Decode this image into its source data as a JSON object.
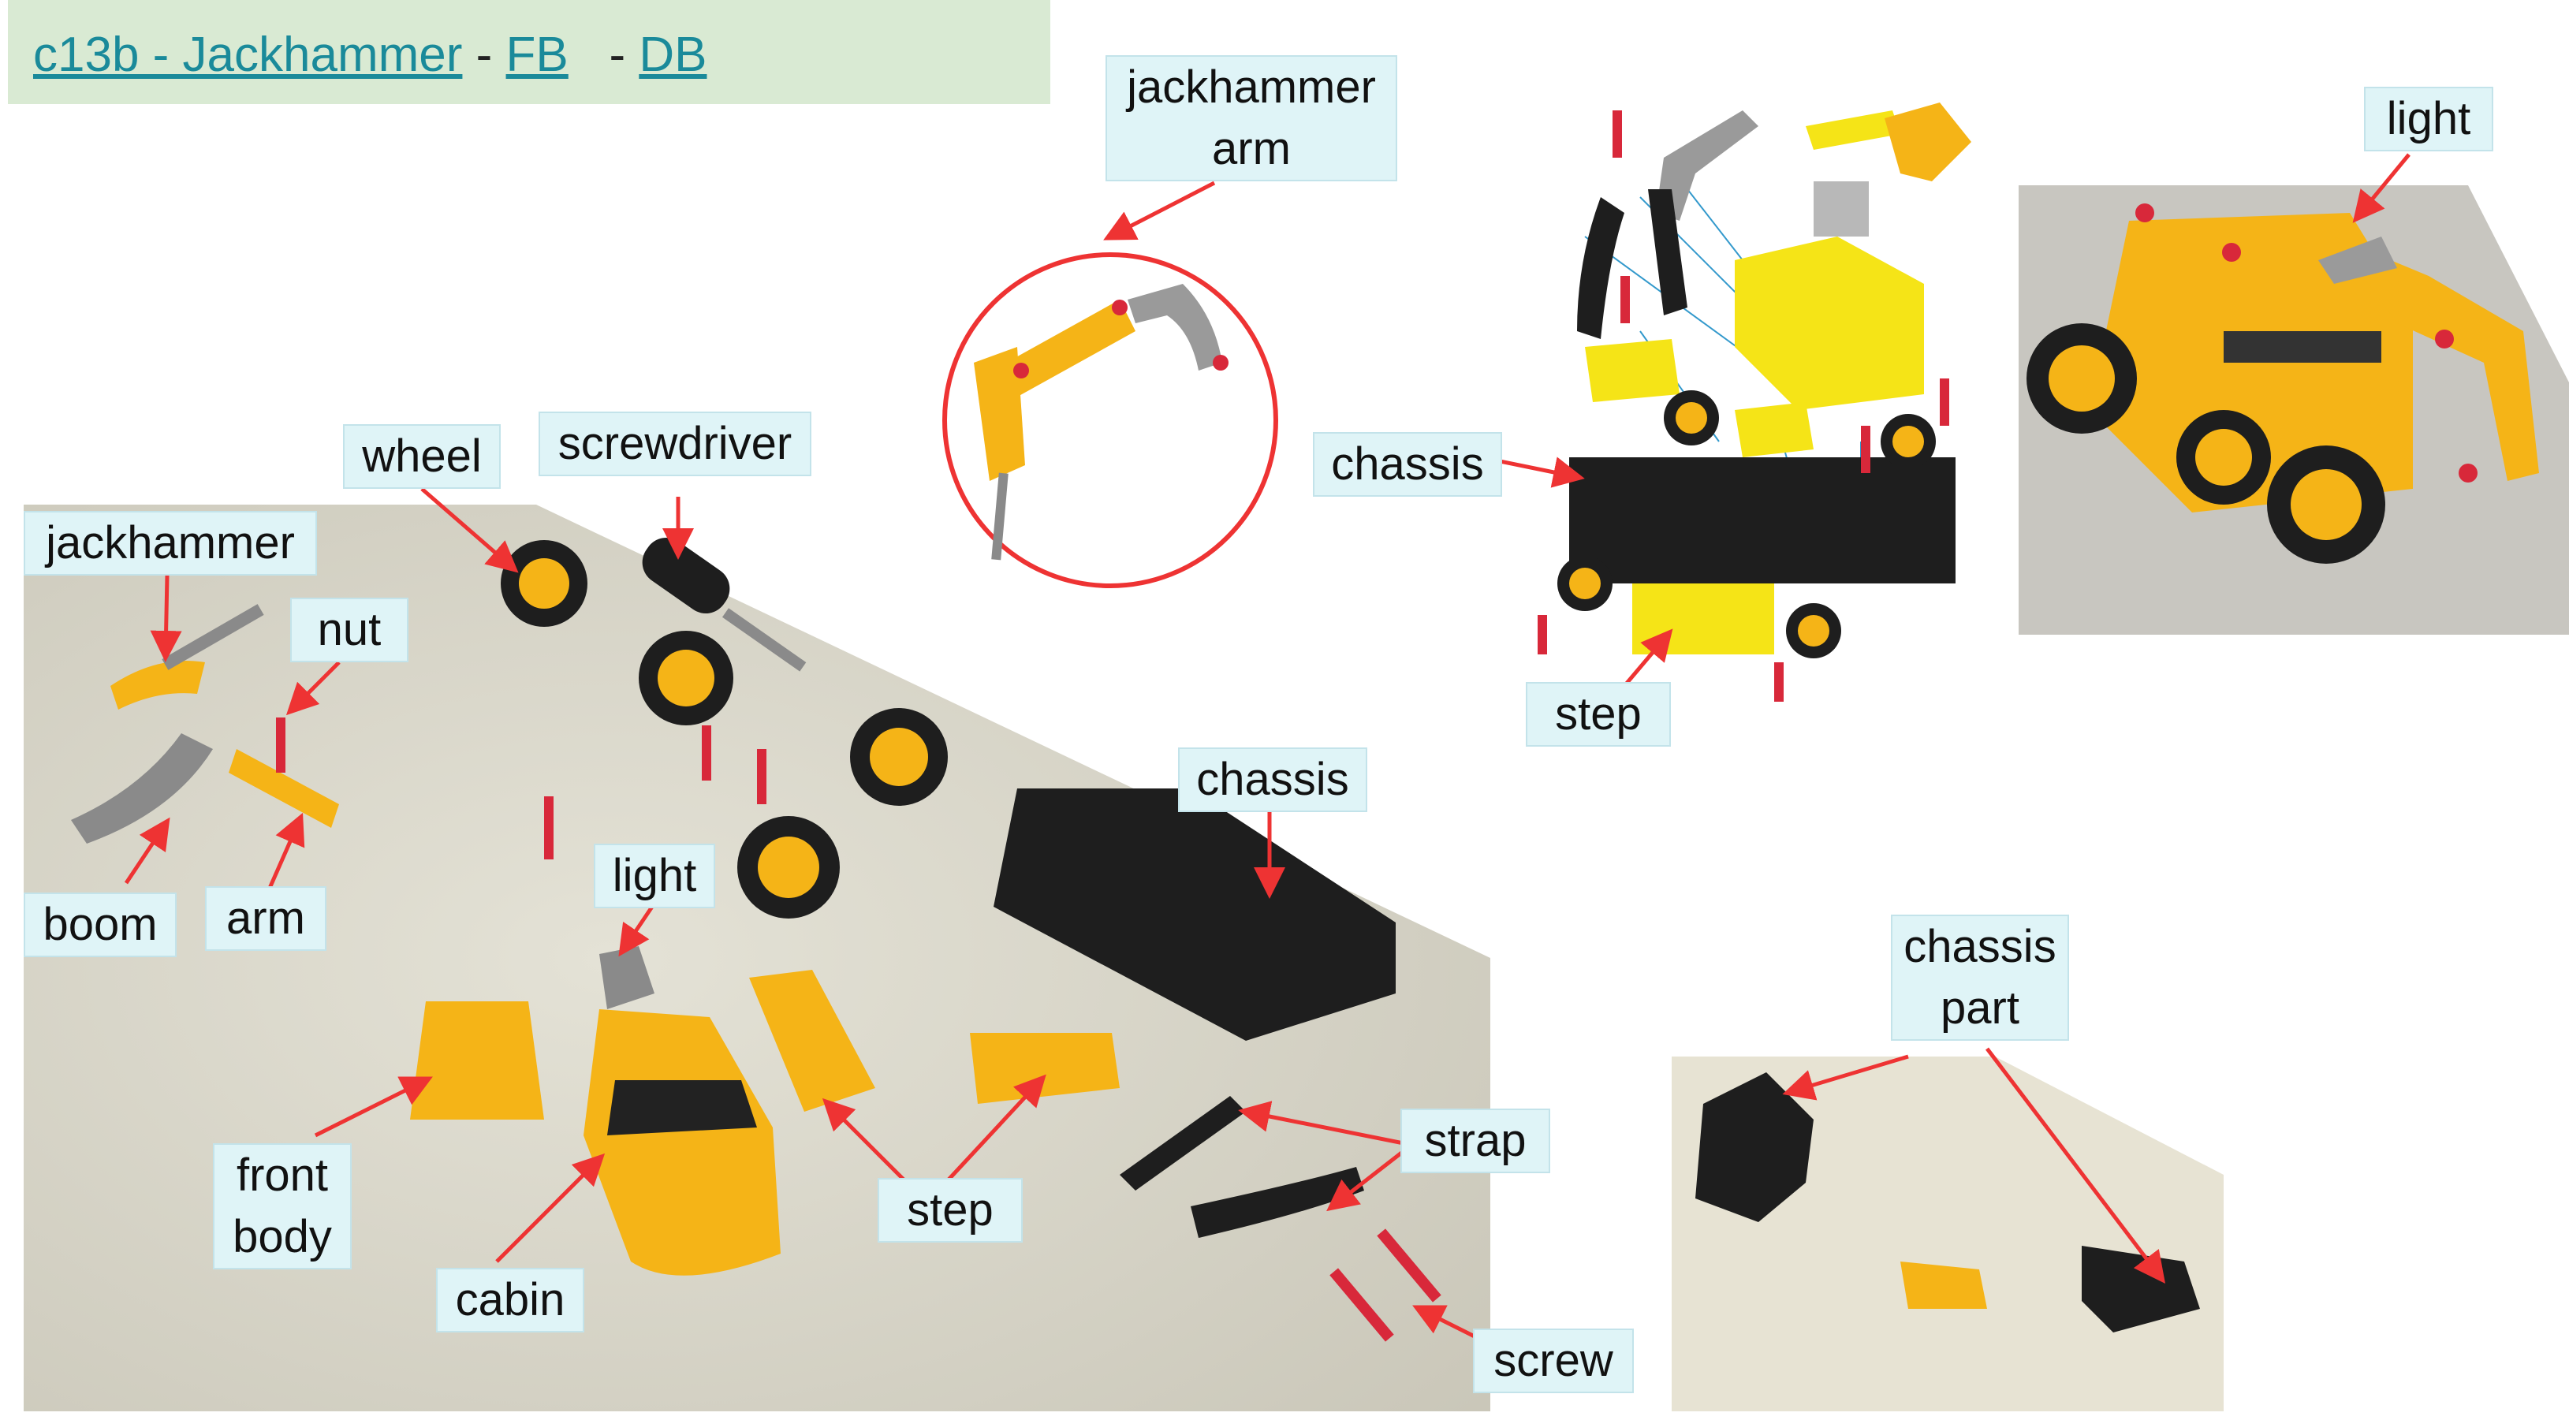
{
  "header": {
    "title_link": "c13b - Jackhammer",
    "sep1": " - ",
    "fb_link": "FB",
    "sep2": "   - ",
    "db_link": "DB"
  },
  "labels": {
    "jackhammer_arm_line1": "jackhammer",
    "jackhammer_arm_line2": "arm",
    "chassis_top": "chassis",
    "step_top": "step",
    "light_top": "light",
    "wheel": "wheel",
    "screwdriver": "screwdriver",
    "jackhammer": "jackhammer",
    "nut": "nut",
    "boom": "boom",
    "arm": "arm",
    "chassis_main": "chassis",
    "light_main": "light",
    "front_body_line1": "front",
    "front_body_line2": "body",
    "cabin": "cabin",
    "step_main": "step",
    "strap": "strap",
    "screw": "screw",
    "chassis_part_line1": "chassis",
    "chassis_part_line2": "part"
  },
  "colors": {
    "arrow": "#ee3333",
    "label_bg": "#dff4f7",
    "header_bg": "#d9ead3",
    "link": "#1a8a9a",
    "part_yellow": "#f5b417",
    "part_black": "#1e1e1e",
    "part_gray": "#8a8a8a",
    "screw_red": "#d8283a",
    "photo_bg": "#d9d6c9"
  }
}
